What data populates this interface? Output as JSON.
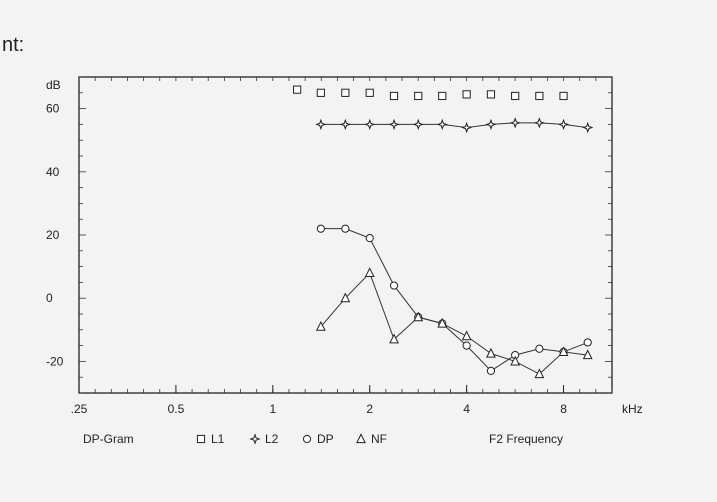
{
  "header_fragment": "nt:",
  "chart_data": {
    "type": "line",
    "x_scale": "log2",
    "xlim": [
      0.25,
      11.314
    ],
    "ylim": [
      -30,
      70
    ],
    "ylabel": "dB",
    "xlabel": "kHz",
    "x_ticks": [
      {
        "value": 0.25,
        "label": ".25"
      },
      {
        "value": 0.5,
        "label": "0.5"
      },
      {
        "value": 1,
        "label": "1"
      },
      {
        "value": 2,
        "label": "2"
      },
      {
        "value": 4,
        "label": "4"
      },
      {
        "value": 8,
        "label": "8"
      }
    ],
    "y_ticks": [
      {
        "value": 60,
        "label": "60"
      },
      {
        "value": 40,
        "label": "40"
      },
      {
        "value": 20,
        "label": "20"
      },
      {
        "value": 0,
        "label": "0"
      },
      {
        "value": -20,
        "label": "-20"
      }
    ],
    "footer": {
      "title": "DP-Gram",
      "x_title": "F2 Frequency"
    },
    "grid": false,
    "series": [
      {
        "name": "L1",
        "marker": "square",
        "line": false,
        "points": [
          [
            1.19,
            66
          ],
          [
            1.41,
            65
          ],
          [
            1.68,
            65
          ],
          [
            2.0,
            65
          ],
          [
            2.38,
            64
          ],
          [
            2.83,
            64
          ],
          [
            3.36,
            64
          ],
          [
            4.0,
            64.5
          ],
          [
            4.76,
            64.5
          ],
          [
            5.66,
            64
          ],
          [
            6.73,
            64
          ],
          [
            8.0,
            64
          ]
        ]
      },
      {
        "name": "L2",
        "marker": "diamond",
        "line": true,
        "points": [
          [
            1.41,
            55
          ],
          [
            1.68,
            55
          ],
          [
            2.0,
            55
          ],
          [
            2.38,
            55
          ],
          [
            2.83,
            55
          ],
          [
            3.36,
            55
          ],
          [
            4.0,
            54
          ],
          [
            4.76,
            55
          ],
          [
            5.66,
            55.5
          ],
          [
            6.73,
            55.5
          ],
          [
            8.0,
            55
          ],
          [
            9.51,
            54
          ]
        ]
      },
      {
        "name": "DP",
        "marker": "circle",
        "line": true,
        "points": [
          [
            1.41,
            22
          ],
          [
            1.68,
            22
          ],
          [
            2.0,
            19
          ],
          [
            2.38,
            4
          ],
          [
            2.83,
            -6
          ],
          [
            3.36,
            -8
          ],
          [
            4.0,
            -15
          ],
          [
            4.76,
            -23
          ],
          [
            5.66,
            -18
          ],
          [
            6.73,
            -16
          ],
          [
            8.0,
            -17
          ],
          [
            9.51,
            -14
          ]
        ]
      },
      {
        "name": "NF",
        "marker": "triangle",
        "line": true,
        "points": [
          [
            1.41,
            -9
          ],
          [
            1.68,
            0
          ],
          [
            2.0,
            8
          ],
          [
            2.38,
            -13
          ],
          [
            2.83,
            -6
          ],
          [
            3.36,
            -8
          ],
          [
            4.0,
            -12
          ],
          [
            4.76,
            -17.5
          ],
          [
            5.66,
            -20
          ],
          [
            6.73,
            -24
          ],
          [
            8.0,
            -17
          ],
          [
            9.51,
            -18
          ]
        ]
      }
    ]
  }
}
